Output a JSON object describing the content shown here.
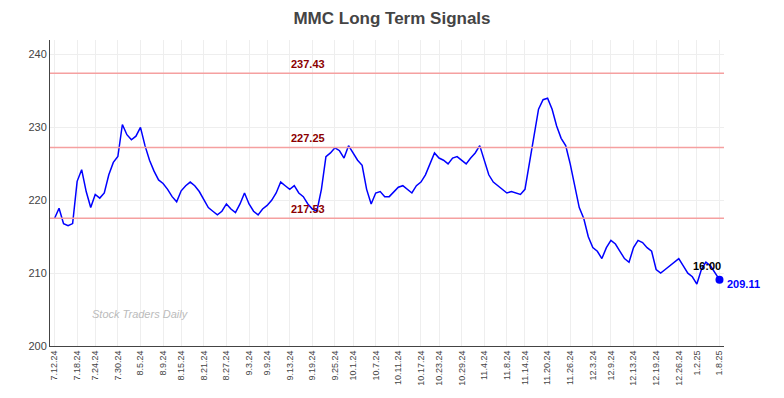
{
  "chart_data": {
    "type": "line",
    "title": "MMC Long Term Signals",
    "categories": [
      "7.12.24",
      null,
      null,
      null,
      null,
      "7.18.24",
      null,
      null,
      null,
      "7.24.24",
      null,
      null,
      null,
      null,
      "7.30.24",
      null,
      null,
      null,
      null,
      "8.5.24",
      null,
      null,
      null,
      null,
      "8.9.24",
      null,
      null,
      null,
      "8.15.24",
      null,
      null,
      null,
      null,
      "8.21.24",
      null,
      null,
      null,
      null,
      "8.27.24",
      null,
      null,
      null,
      null,
      "9.3.24",
      null,
      null,
      null,
      "9.9.24",
      null,
      null,
      null,
      null,
      "9.13.24",
      null,
      null,
      null,
      null,
      "9.19.24",
      null,
      null,
      null,
      null,
      "9.25.24",
      null,
      null,
      null,
      "10.1.24",
      null,
      null,
      null,
      null,
      "10.7.24",
      null,
      null,
      null,
      null,
      "10.11.24",
      null,
      null,
      null,
      null,
      "10.17.24",
      null,
      null,
      null,
      "10.23.24",
      null,
      null,
      null,
      null,
      "10.29.24",
      null,
      null,
      null,
      null,
      "11.4.24",
      null,
      null,
      null,
      null,
      "11.8.24",
      null,
      null,
      null,
      "11.14.24",
      null,
      null,
      null,
      null,
      "11.20.24",
      null,
      null,
      null,
      null,
      "11.26.24",
      null,
      null,
      null,
      null,
      "12.3.24",
      null,
      null,
      null,
      "12.9.24",
      null,
      null,
      null,
      null,
      "12.13.24",
      null,
      null,
      null,
      null,
      "12.19.24",
      null,
      null,
      null,
      null,
      "12.26.24",
      null,
      null,
      null,
      "1.2.25",
      null,
      null,
      null,
      null,
      "1.8.25"
    ],
    "values": [
      217.5,
      218.9,
      216.8,
      216.5,
      216.8,
      222.6,
      224.2,
      221.2,
      219.0,
      220.8,
      220.3,
      221.0,
      223.5,
      225.2,
      226.0,
      230.4,
      229.0,
      228.3,
      228.8,
      230.0,
      227.5,
      225.5,
      224.0,
      222.8,
      222.3,
      221.5,
      220.5,
      219.8,
      221.3,
      222.0,
      222.5,
      222.0,
      221.2,
      220.0,
      219.0,
      218.5,
      218.0,
      218.5,
      219.5,
      218.8,
      218.3,
      219.5,
      221.0,
      219.5,
      218.5,
      218.0,
      218.8,
      219.3,
      220.0,
      221.0,
      222.5,
      222.0,
      221.5,
      222.0,
      221.0,
      220.5,
      219.5,
      218.8,
      218.5,
      221.5,
      226.0,
      226.5,
      227.2,
      226.8,
      225.8,
      227.5,
      226.5,
      225.5,
      224.8,
      221.5,
      219.5,
      221.0,
      221.2,
      220.5,
      220.5,
      221.2,
      221.8,
      222.0,
      221.5,
      221.0,
      222.0,
      222.5,
      223.5,
      225.0,
      226.5,
      225.8,
      225.5,
      225.0,
      225.8,
      226.0,
      225.5,
      225.0,
      225.8,
      226.5,
      227.5,
      225.5,
      223.5,
      222.5,
      222.0,
      221.5,
      221.0,
      221.2,
      221.0,
      220.8,
      221.5,
      225.0,
      229.0,
      232.5,
      233.8,
      234.0,
      232.5,
      230.2,
      228.5,
      227.5,
      225.0,
      222.0,
      219.0,
      217.5,
      215.0,
      213.5,
      213.0,
      212.0,
      213.5,
      214.5,
      214.0,
      213.0,
      212.0,
      211.5,
      213.5,
      214.5,
      214.2,
      213.5,
      213.0,
      210.5,
      210.0,
      210.5,
      211.0,
      211.5,
      212.0,
      211.0,
      210.0,
      209.5,
      208.5,
      210.5,
      211.5,
      211.0,
      210.0,
      209.11
    ],
    "color": "blue",
    "ylim": [
      200,
      242
    ],
    "yticks": [
      200,
      210,
      220,
      230,
      240
    ],
    "grid": true,
    "horizontal_lines": {
      "values": [
        237.43,
        227.25,
        217.53
      ],
      "color": "#f5a0a0"
    },
    "annotations": [
      {
        "text": "237.43",
        "y": 237.43,
        "color": "darkred"
      },
      {
        "text": "227.25",
        "y": 227.25,
        "color": "darkred"
      },
      {
        "text": "217.53",
        "y": 217.53,
        "color": "darkred"
      },
      {
        "text": "16:00",
        "x": 147,
        "y": 209.11,
        "color": "black",
        "position": "above"
      },
      {
        "text": "209.11",
        "x": 147,
        "y": 209.11,
        "color": "blue",
        "position": "right"
      },
      {
        "text": "Stock Traders Daily",
        "color": "#bbbbbb"
      }
    ]
  }
}
